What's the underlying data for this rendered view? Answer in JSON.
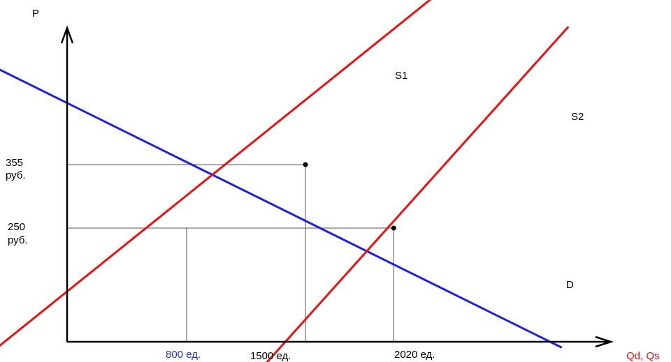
{
  "chart_data": {
    "type": "line",
    "ylabel": "P",
    "xlabel": "Qd, Qs",
    "colors": {
      "demand": "#1f1fe6",
      "supply": "#ee1111",
      "axis": "#000000",
      "guide": "#555555",
      "xlabel": "#ee1111",
      "tick_800": "#2233cc"
    },
    "series": [
      {
        "name": "D",
        "color": "#1f1fe6",
        "points": [
          [
            -430,
            530
          ],
          [
            3005,
            53
          ]
        ]
      },
      {
        "name": "S1",
        "color": "#ee1111",
        "points": [
          [
            -330,
            49
          ],
          [
            2355,
            655
          ]
        ]
      },
      {
        "name": "S2",
        "color": "#ee1111",
        "points": [
          [
            1225,
            13
          ],
          [
            3045,
            582
          ]
        ]
      }
    ],
    "equilibria": [
      {
        "x": 1500,
        "y": 355
      },
      {
        "x": 2020,
        "y": 250
      }
    ],
    "guides": [
      {
        "type": "h",
        "y": 355,
        "x_to": 1500
      },
      {
        "type": "h",
        "y": 250,
        "x_to": 2020
      },
      {
        "type": "v",
        "x": 800,
        "y_to": 250
      },
      {
        "type": "v",
        "x": 1500,
        "y_to": 355
      },
      {
        "type": "v",
        "x": 2020,
        "y_to": 250
      }
    ],
    "y_ticks": [
      {
        "value": 355,
        "line1": "355",
        "line2": "руб."
      },
      {
        "value": 250,
        "line1": "250",
        "line2": "руб."
      }
    ],
    "x_ticks": [
      {
        "value": 800,
        "label": "800 ед.",
        "color": "#2233cc"
      },
      {
        "value": 1500,
        "label": "1500 ед.",
        "color": "#000000"
      },
      {
        "value": 2020,
        "label": "2020 ед.",
        "color": "#000000"
      }
    ]
  }
}
